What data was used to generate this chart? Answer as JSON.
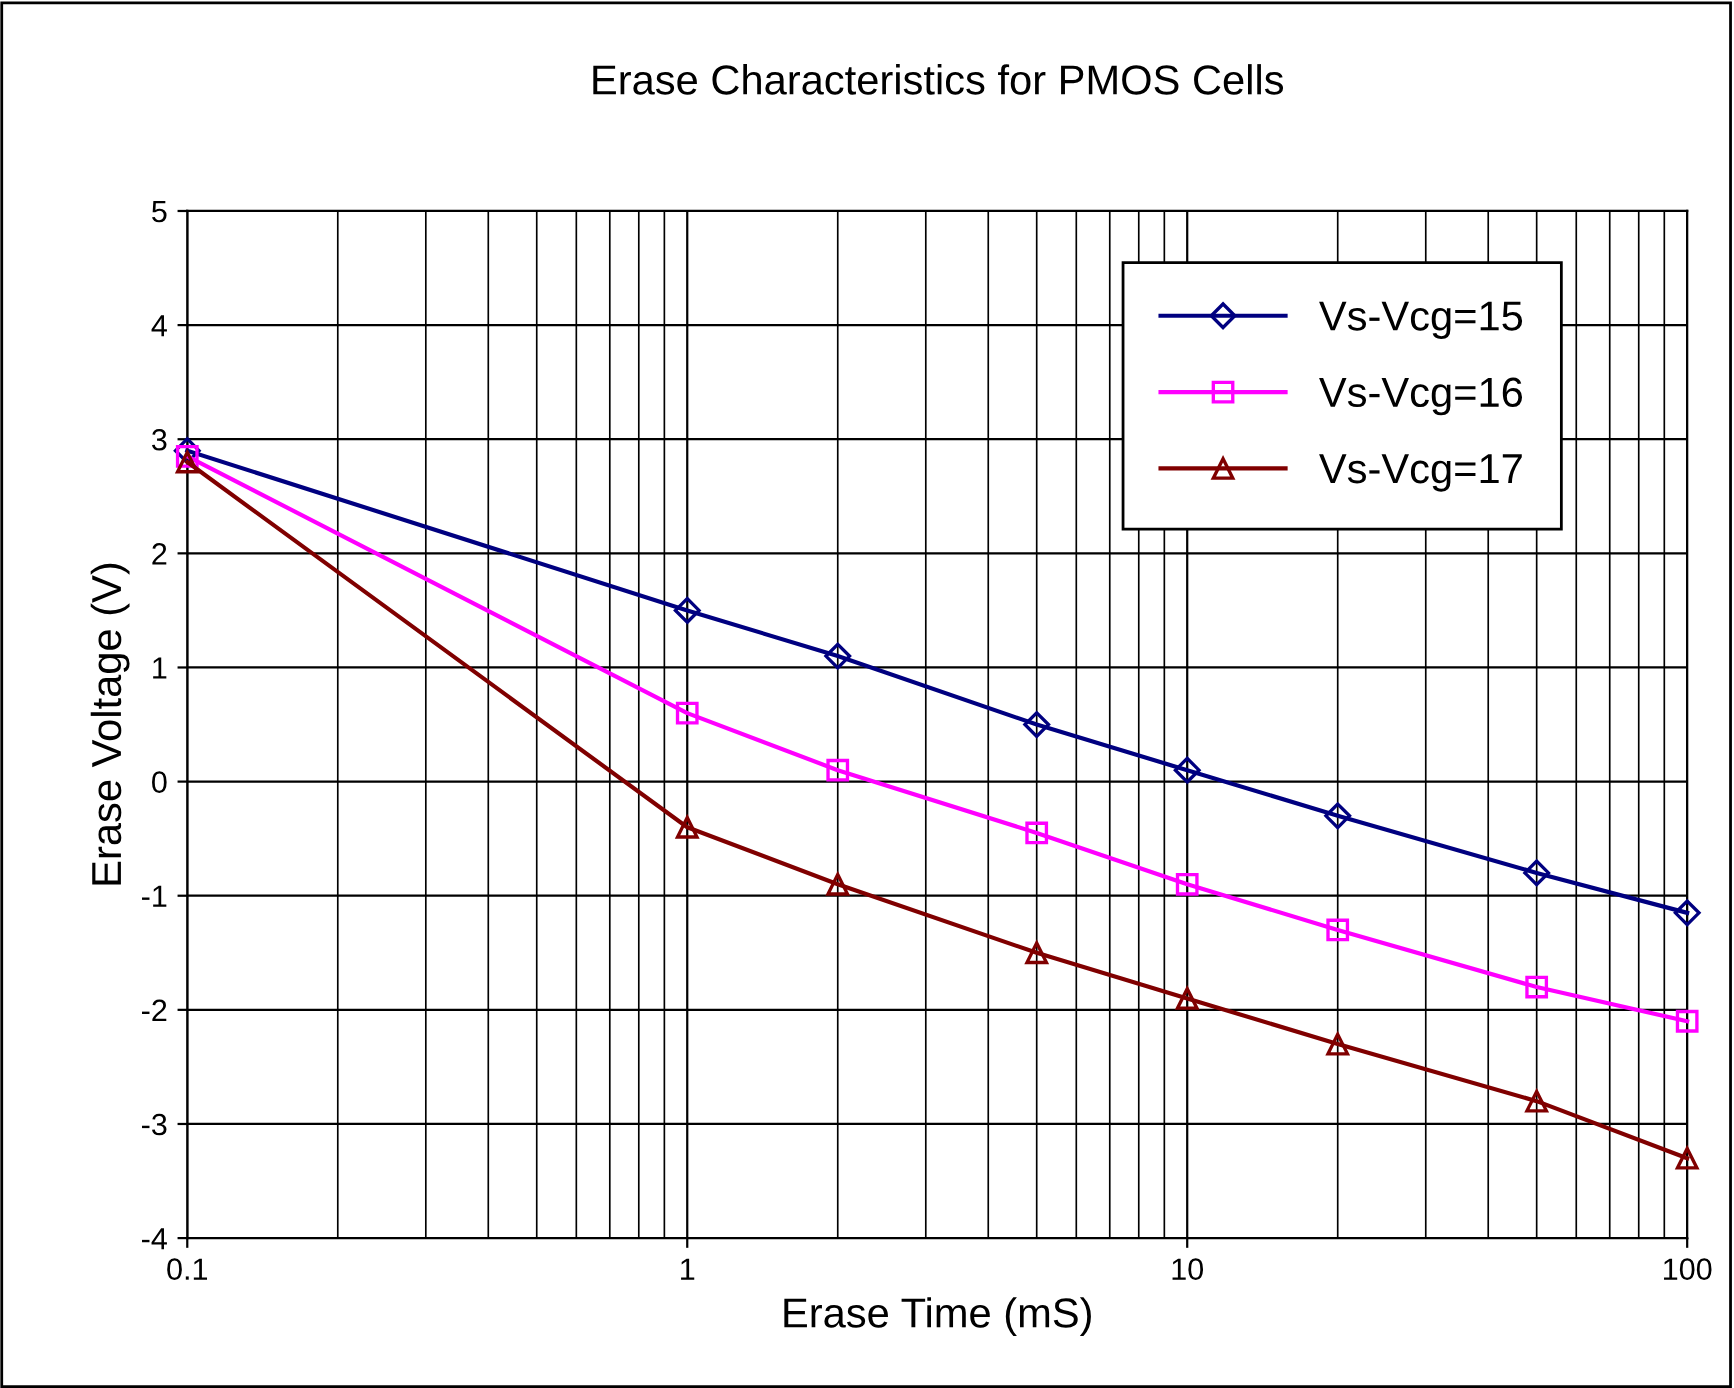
{
  "chart_data": {
    "type": "line",
    "title": "Erase Characteristics for PMOS Cells",
    "xlabel": "Erase Time (mS)",
    "ylabel": "Erase Voltage (V)",
    "x": [
      0.1,
      1,
      2,
      5,
      10,
      20,
      50,
      100
    ],
    "series": [
      {
        "name": "Vs-Vcg=15",
        "color": "#000080",
        "marker": "diamond",
        "values": [
          2.9,
          1.5,
          1.1,
          0.5,
          0.1,
          -0.3,
          -0.8,
          -1.15
        ]
      },
      {
        "name": "Vs-Vcg=16",
        "color": "#ff00ff",
        "marker": "square",
        "values": [
          2.85,
          0.6,
          0.1,
          -0.45,
          -0.9,
          -1.3,
          -1.8,
          -2.1
        ]
      },
      {
        "name": "Vs-Vcg=17",
        "color": "#800000",
        "marker": "triangle",
        "values": [
          2.8,
          -0.4,
          -0.9,
          -1.5,
          -1.9,
          -2.3,
          -2.8,
          -3.3
        ]
      }
    ],
    "log": "x",
    "xlim": [
      0.1,
      100
    ],
    "xticks": [
      0.1,
      1,
      10,
      100
    ],
    "ylim": [
      -4,
      5
    ],
    "yticks": [
      -4,
      -3,
      -2,
      -1,
      0,
      1,
      2,
      3,
      4,
      5
    ],
    "grid": true,
    "legend": "top right",
    "line_style": "solid"
  }
}
